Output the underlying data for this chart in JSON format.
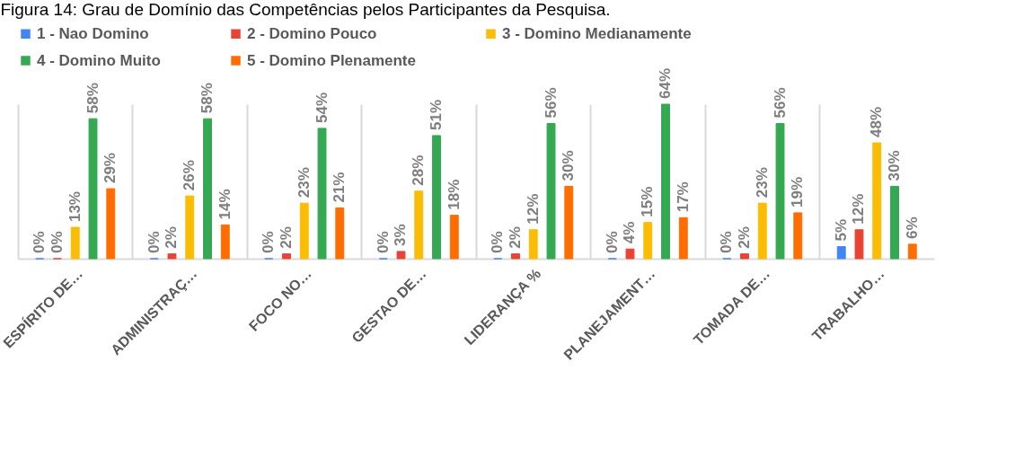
{
  "chart_data": {
    "type": "bar",
    "title": "Figura 14: Grau de Domínio das Competências pelos Participantes da Pesquisa.",
    "categories": [
      "ESPÍRITO DE…",
      "ADMINISTRAÇ…",
      "FOCO NO…",
      "GESTAO DE…",
      "LIDERANÇA %",
      "PLANEJAMENT…",
      "TOMADA DE…",
      "TRABALHO…"
    ],
    "series": [
      {
        "name": "1 - Nao Domino",
        "color": "#4285f4",
        "values": [
          0,
          0,
          0,
          0,
          0,
          0,
          0,
          5
        ],
        "value_labels": [
          "0%",
          "0%",
          "0%",
          "0%",
          "0%",
          "0%",
          "0%",
          "5%"
        ]
      },
      {
        "name": "2 - Domino Pouco",
        "color": "#ea4335",
        "values": [
          0,
          2,
          2,
          3,
          2,
          4,
          2,
          12
        ],
        "value_labels": [
          "0%",
          "2%",
          "2%",
          "3%",
          "2%",
          "4%",
          "2%",
          "12%"
        ]
      },
      {
        "name": "3 - Domino Medianamente",
        "color": "#fbbc04",
        "values": [
          13,
          26,
          23,
          28,
          12,
          15,
          23,
          48
        ],
        "value_labels": [
          "13%",
          "26%",
          "23%",
          "28%",
          "12%",
          "15%",
          "23%",
          "48%"
        ]
      },
      {
        "name": "4 - Domino Muito",
        "color": "#34a853",
        "values": [
          58,
          58,
          54,
          51,
          56,
          64,
          56,
          30
        ],
        "value_labels": [
          "58%",
          "58%",
          "54%",
          "51%",
          "56%",
          "64%",
          "56%",
          "30%"
        ]
      },
      {
        "name": "5 - Domino Plenamente",
        "color": "#ff6d01",
        "values": [
          29,
          14,
          21,
          18,
          30,
          17,
          19,
          6
        ],
        "value_labels": [
          "29%",
          "14%",
          "21%",
          "18%",
          "30%",
          "17%",
          "19%",
          "6%"
        ]
      }
    ],
    "grid": "x",
    "legend": "top"
  }
}
